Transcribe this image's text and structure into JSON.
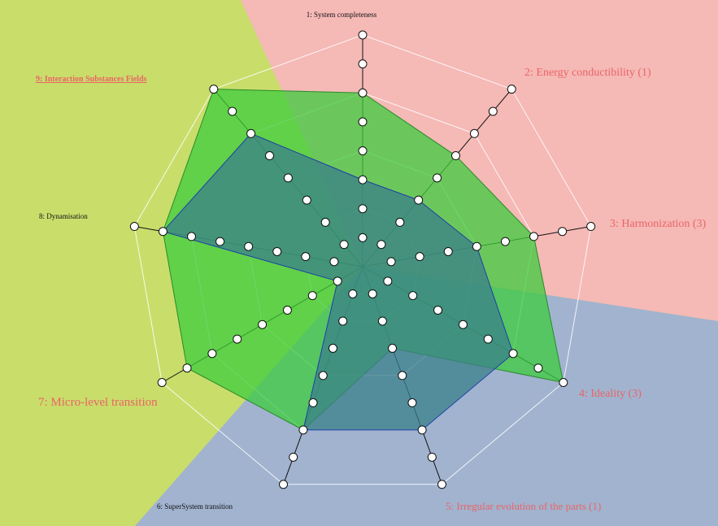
{
  "colors": {
    "bg_left": "#c9dd6b",
    "bg_top_right": "#f5b9b6",
    "bg_bottom": "#a1b3cf",
    "grid": "#ffffff",
    "spoke": "#111111",
    "series1_fill": "#3ccc3c",
    "series1_stroke": "#2a8a2a",
    "series2_fill": "#3a7f8a",
    "series2_stroke": "#1d3fa6",
    "label_red": "#ea6565",
    "label_black": "#111111"
  },
  "chart_data": {
    "type": "radar",
    "title": "",
    "axes": [
      "1: System completeness",
      "2: Energy conductibility (1)",
      "3: Harmonization (3)",
      "4: Ideality (3)",
      "5: Irregular evolution of the parts (1)",
      "6: SuperSystem transition",
      "7: Micro-level transition",
      "8: Dynamisation",
      "9: Interaction Substances Fields"
    ],
    "levels": 4,
    "max": 8,
    "series": [
      {
        "values": [
          6,
          5,
          6,
          8,
          3,
          6,
          7,
          7,
          8
        ]
      },
      {
        "values": [
          3,
          3,
          4,
          6,
          6,
          6,
          1,
          7,
          6
        ]
      }
    ]
  }
}
